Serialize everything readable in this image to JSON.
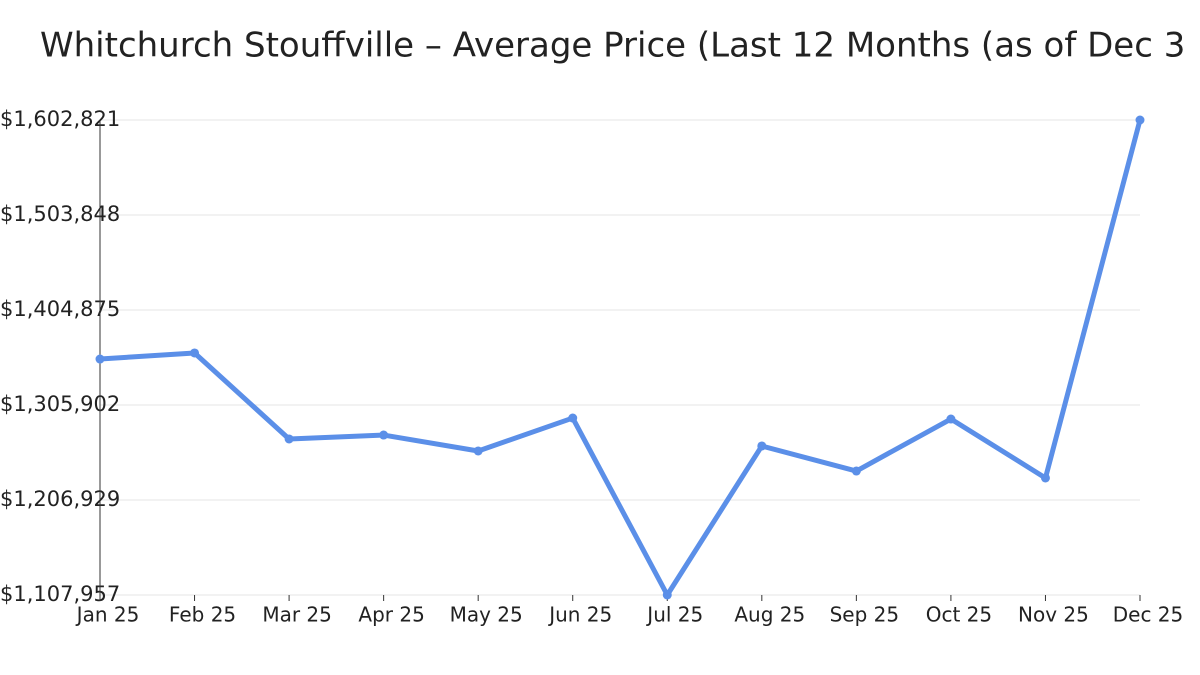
{
  "chart_data": {
    "type": "line",
    "title": "Whitchurch Stouffville – Average Price (Last 12 Months (as of Dec 3",
    "categories": [
      "Jan 25",
      "Feb 25",
      "Mar 25",
      "Apr 25",
      "May 25",
      "Jun 25",
      "Jul 25",
      "Aug 25",
      "Sep 25",
      "Oct 25",
      "Nov 25",
      "Dec 25"
    ],
    "series": [
      {
        "color": "#5b8fe8",
        "values": [
          1353800,
          1360100,
          1270500,
          1274600,
          1258000,
          1292300,
          1107957,
          1263200,
          1237100,
          1291300,
          1229900,
          1602821
        ]
      }
    ],
    "ylim": [
      1107957,
      1602821
    ],
    "yticks": [
      {
        "value": 1107957,
        "label": "$1,107,957"
      },
      {
        "value": 1206929,
        "label": "$1,206,929"
      },
      {
        "value": 1305902,
        "label": "$1,305,902"
      },
      {
        "value": 1404875,
        "label": "$1,404,875"
      },
      {
        "value": 1503848,
        "label": "$1,503,848"
      },
      {
        "value": 1602821,
        "label": "$1,602,821"
      }
    ],
    "grid": true
  }
}
